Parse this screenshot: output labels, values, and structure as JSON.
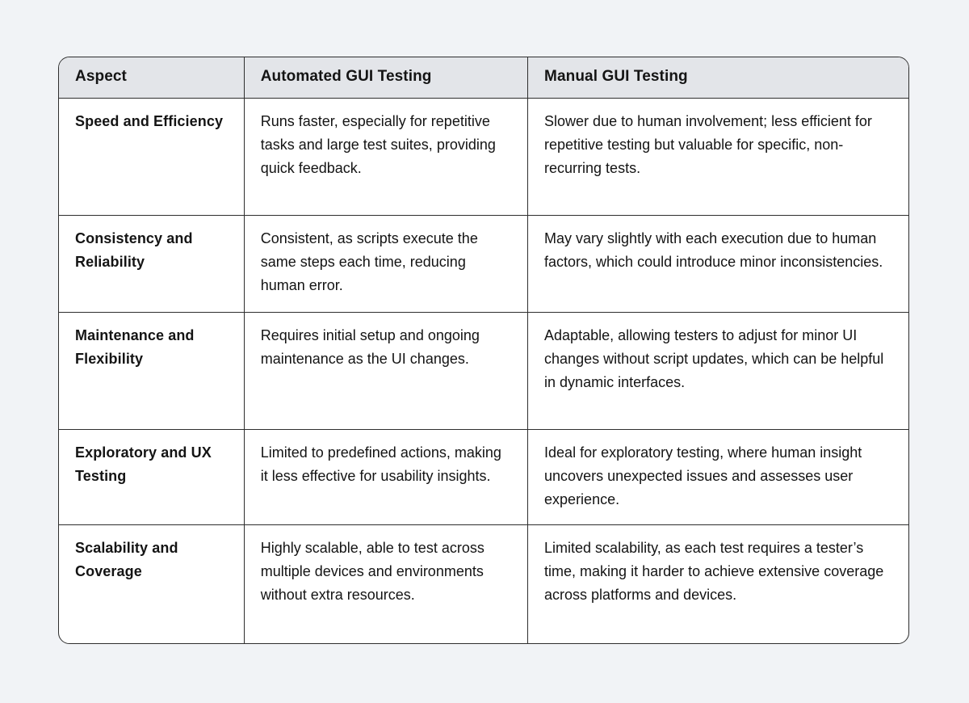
{
  "page": {
    "background_color": "#f1f3f6",
    "table_border_color": "#2e2e2e",
    "header_background_color": "#e3e5e9"
  },
  "table": {
    "columns": [
      "Aspect",
      "Automated GUI Testing",
      "Manual GUI Testing"
    ],
    "rows": [
      {
        "aspect": "Speed and Efficiency",
        "automated": "Runs faster, especially for repetitive tasks and large test suites, providing quick feedback.",
        "manual": "Slower due to human involvement; less efficient for repetitive testing but valuable for specific, non-recurring tests."
      },
      {
        "aspect": "Consistency and Reliability",
        "automated": "Consistent, as scripts execute the same steps each time, reducing human error.",
        "manual": "May vary slightly with each execution due to human factors, which could introduce minor inconsistencies."
      },
      {
        "aspect": "Maintenance and Flexibility",
        "automated": "Requires initial setup and ongoing maintenance as the UI changes.",
        "manual": "Adaptable, allowing testers to adjust for minor UI changes without script updates, which can be helpful in dynamic interfaces."
      },
      {
        "aspect": "Exploratory and UX Testing",
        "automated": "Limited to predefined actions, making it less effective for usability insights.",
        "manual": "Ideal for exploratory testing, where human insight uncovers unexpected issues and assesses user experience."
      },
      {
        "aspect": "Scalability and Coverage",
        "automated": "Highly scalable, able to test across multiple devices and environments without extra resources.",
        "manual": "Limited scalability, as each test requires a tester’s time, making it harder to achieve extensive coverage across platforms and devices."
      }
    ]
  }
}
